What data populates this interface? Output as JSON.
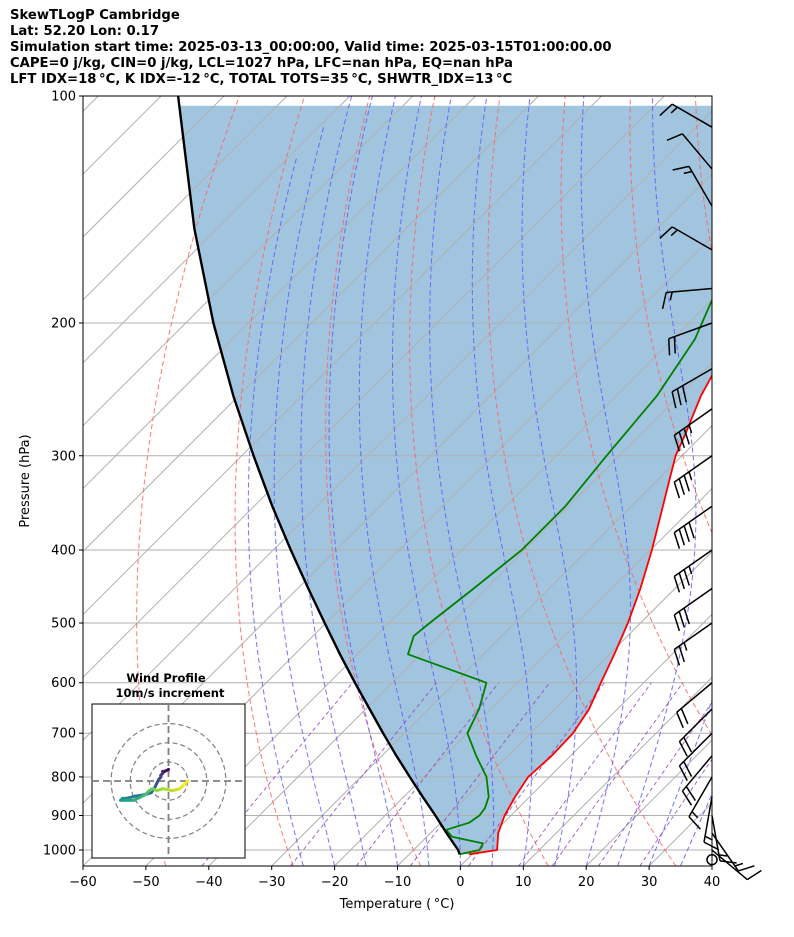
{
  "header": {
    "line1": "SkewTLogP Cambridge",
    "line2": "Lat: 52.20   Lon: 0.17",
    "line3": "Simulation start time: 2025-03-13_00:00:00, Valid time: 2025-03-15T01:00:00.00",
    "line4": "CAPE=0 j/kg, CIN=0 j/kg, LCL=1027 hPa, LFC=nan hPa, EQ=nan hPa",
    "line5": "LFT IDX=18 °C, K IDX=-12 °C, TOTAL TOTS=35 °C, SHWTR_IDX=13 °C"
  },
  "chart_data": {
    "type": "line",
    "subtype": "skew-t log-p",
    "xlabel": "Temperature ( °C)",
    "ylabel": "Pressure (hPa)",
    "xlim": [
      -60,
      40
    ],
    "ylim": [
      1050,
      100
    ],
    "x_ticks": [
      "−60",
      "−50",
      "−40",
      "−30",
      "−20",
      "−10",
      "0",
      "10",
      "20",
      "30",
      "40"
    ],
    "x_tick_values": [
      -60,
      -50,
      -40,
      -30,
      -20,
      -10,
      0,
      10,
      20,
      30,
      40
    ],
    "y_ticks": [
      "1000",
      "900",
      "800",
      "700",
      "600",
      "500",
      "400",
      "300",
      "200",
      "100"
    ],
    "y_tick_values": [
      1000,
      900,
      800,
      700,
      600,
      500,
      400,
      300,
      200,
      100
    ],
    "y_scale": "log",
    "grid": true,
    "colors": {
      "temperature": "#ff0000",
      "dewpoint": "#008000",
      "parcel": "#000000",
      "cape_fill": "#a2c5df",
      "isotherm": "#b0b0b0",
      "dry_adiabat": "#ff6060",
      "moist_adiabat": "#5a5aff",
      "mixing_ratio": "#9040c0"
    },
    "series": [
      {
        "key": "temperature",
        "values": [
          [
            1013,
            -0.5
          ],
          [
            1000,
            3.3
          ],
          [
            950,
            0.8
          ],
          [
            900,
            -1.0
          ],
          [
            850,
            -2.3
          ],
          [
            800,
            -3.4
          ],
          [
            750,
            -3.0
          ],
          [
            700,
            -3.2
          ],
          [
            650,
            -4.5
          ],
          [
            600,
            -6.8
          ],
          [
            550,
            -9.2
          ],
          [
            500,
            -12.0
          ],
          [
            450,
            -15.5
          ],
          [
            400,
            -19.8
          ],
          [
            350,
            -25.0
          ],
          [
            320,
            -28.5
          ],
          [
            300,
            -31.0
          ],
          [
            280,
            -33.0
          ],
          [
            250,
            -36.5
          ],
          [
            220,
            -39.5
          ],
          [
            200,
            -42.5
          ],
          [
            180,
            -45.5
          ],
          [
            150,
            -46.5
          ],
          [
            130,
            -46.8
          ],
          [
            115,
            -48.5
          ],
          [
            100,
            -50.5
          ]
        ]
      },
      {
        "key": "dewpoint",
        "values": [
          [
            1013,
            -2.0
          ],
          [
            1000,
            0.5
          ],
          [
            980,
            0.0
          ],
          [
            960,
            -6.0
          ],
          [
            940,
            -8.0
          ],
          [
            920,
            -5.5
          ],
          [
            900,
            -5.0
          ],
          [
            880,
            -5.3
          ],
          [
            850,
            -6.5
          ],
          [
            800,
            -10.0
          ],
          [
            750,
            -15.0
          ],
          [
            700,
            -20.0
          ],
          [
            650,
            -22.0
          ],
          [
            600,
            -25.0
          ],
          [
            550,
            -42.0
          ],
          [
            520,
            -44.0
          ],
          [
            500,
            -43.5
          ],
          [
            450,
            -42.0
          ],
          [
            400,
            -40.5
          ],
          [
            350,
            -40.5
          ],
          [
            300,
            -42.0
          ],
          [
            250,
            -43.5
          ],
          [
            210,
            -46.5
          ],
          [
            180,
            -51.0
          ],
          [
            170,
            -53.0
          ],
          [
            165,
            -55.0
          ],
          [
            150,
            -60.0
          ],
          [
            130,
            -67.0
          ],
          [
            115,
            -73.0
          ],
          [
            100,
            -80.0
          ]
        ]
      },
      {
        "key": "parcel",
        "values": [
          [
            1013,
            -2.0
          ],
          [
            1000,
            -2.9
          ],
          [
            950,
            -7.4
          ],
          [
            900,
            -12.0
          ],
          [
            850,
            -17.0
          ],
          [
            800,
            -22.2
          ],
          [
            750,
            -27.7
          ],
          [
            700,
            -33.4
          ],
          [
            650,
            -39.4
          ],
          [
            600,
            -45.9
          ],
          [
            550,
            -52.8
          ],
          [
            500,
            -60.2
          ],
          [
            450,
            -68.3
          ],
          [
            400,
            -77.2
          ],
          [
            350,
            -87.1
          ],
          [
            300,
            -98.1
          ],
          [
            250,
            -110.8
          ],
          [
            200,
            -125.6
          ],
          [
            150,
            -143.6
          ],
          [
            100,
            -167.3
          ]
        ]
      }
    ],
    "wind_barbs": [
      {
        "p": 1000,
        "speed_kt": 10,
        "dir_deg": 130
      },
      {
        "p": 950,
        "speed_kt": 15,
        "dir_deg": 145
      },
      {
        "p": 900,
        "speed_kt": 15,
        "dir_deg": 170
      },
      {
        "p": 850,
        "speed_kt": 15,
        "dir_deg": 190
      },
      {
        "p": 800,
        "speed_kt": 15,
        "dir_deg": 210
      },
      {
        "p": 750,
        "speed_kt": 20,
        "dir_deg": 220
      },
      {
        "p": 700,
        "speed_kt": 20,
        "dir_deg": 225
      },
      {
        "p": 650,
        "speed_kt": 20,
        "dir_deg": 225
      },
      {
        "p": 600,
        "speed_kt": 20,
        "dir_deg": 230
      },
      {
        "p": 500,
        "speed_kt": 25,
        "dir_deg": 235
      },
      {
        "p": 450,
        "speed_kt": 30,
        "dir_deg": 235
      },
      {
        "p": 400,
        "speed_kt": 35,
        "dir_deg": 235
      },
      {
        "p": 350,
        "speed_kt": 40,
        "dir_deg": 235
      },
      {
        "p": 300,
        "speed_kt": 35,
        "dir_deg": 235
      },
      {
        "p": 260,
        "speed_kt": 35,
        "dir_deg": 235
      },
      {
        "p": 230,
        "speed_kt": 30,
        "dir_deg": 240
      },
      {
        "p": 200,
        "speed_kt": 20,
        "dir_deg": 250
      },
      {
        "p": 180,
        "speed_kt": 15,
        "dir_deg": 265
      },
      {
        "p": 160,
        "speed_kt": 15,
        "dir_deg": 300
      },
      {
        "p": 140,
        "speed_kt": 15,
        "dir_deg": 330
      },
      {
        "p": 125,
        "speed_kt": 10,
        "dir_deg": 320
      },
      {
        "p": 110,
        "speed_kt": 15,
        "dir_deg": 300
      }
    ],
    "calm_marker_p": 1030,
    "hodograph": {
      "title": "Wind Profile",
      "subtitle": "10m/s increment",
      "rings_ms": [
        10,
        20,
        30
      ],
      "range_ms": [
        -40,
        40
      ],
      "colormap": "viridis",
      "points_uv": [
        [
          0,
          6
        ],
        [
          -2,
          5
        ],
        [
          -3,
          5
        ],
        [
          -3,
          4
        ],
        [
          -4,
          3
        ],
        [
          -4,
          2
        ],
        [
          -5,
          1
        ],
        [
          -7,
          -3
        ],
        [
          -9,
          -6
        ],
        [
          -12,
          -7
        ],
        [
          -18,
          -8
        ],
        [
          -22,
          -9
        ],
        [
          -24,
          -9
        ],
        [
          -25,
          -10
        ],
        [
          -22,
          -10
        ],
        [
          -18,
          -10
        ],
        [
          -14,
          -8
        ],
        [
          -12,
          -7
        ],
        [
          -10,
          -5
        ],
        [
          -8,
          -4
        ],
        [
          -6,
          -5
        ],
        [
          -3,
          -4
        ],
        [
          2,
          -5
        ],
        [
          6,
          -4
        ],
        [
          8,
          -2
        ],
        [
          10,
          0
        ]
      ]
    }
  }
}
